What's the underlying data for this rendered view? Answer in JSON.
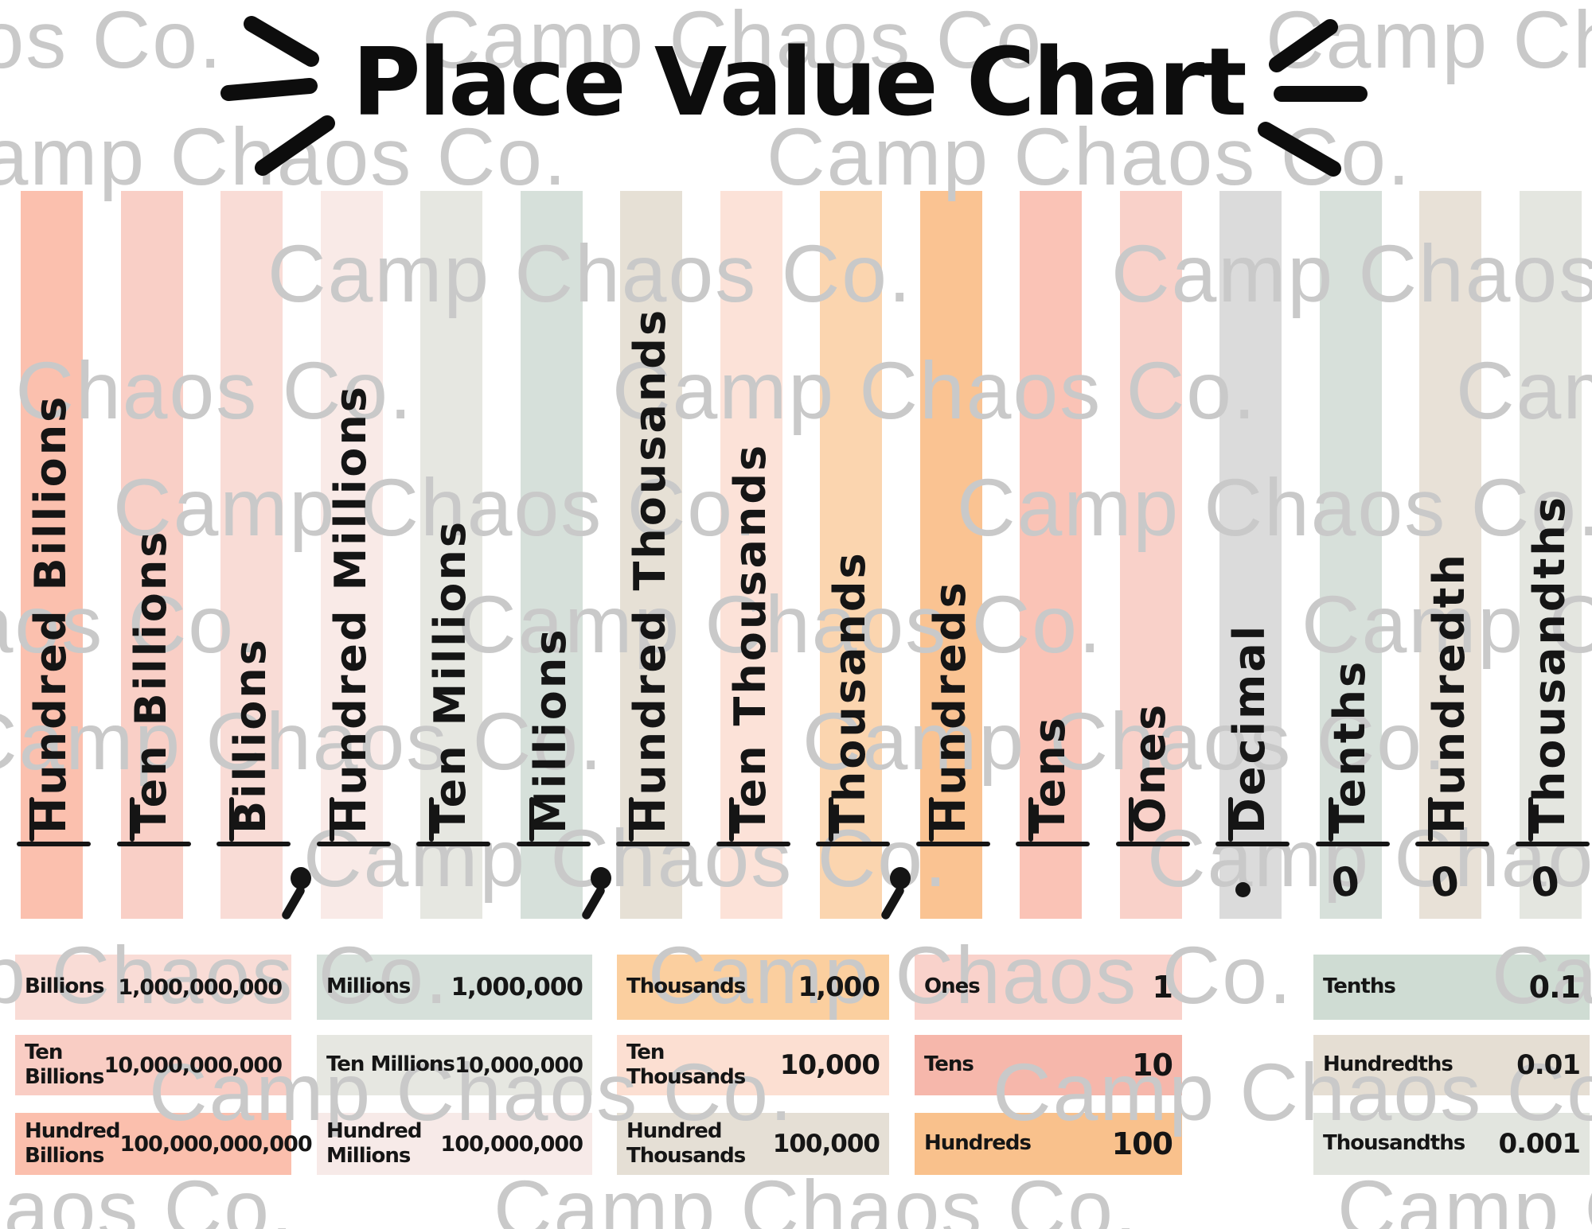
{
  "title": "Place Value Chart",
  "watermark": {
    "text": "Camp Chaos Co."
  },
  "ink_color": "#151515",
  "columns": [
    {
      "label": "Hundred Billions",
      "color": "#fbc0ae",
      "below": "",
      "comma_after": false
    },
    {
      "label": "Ten Billions",
      "color": "#f9cfc6",
      "below": "",
      "comma_after": false
    },
    {
      "label": "Billions",
      "color": "#f9dcd6",
      "below": "",
      "comma_after": true
    },
    {
      "label": "Hundred Millions",
      "color": "#f9eae7",
      "below": "",
      "comma_after": false
    },
    {
      "label": "Ten Millions",
      "color": "#e6e7e1",
      "below": "",
      "comma_after": false
    },
    {
      "label": "Millions",
      "color": "#d6e0da",
      "below": "",
      "comma_after": true
    },
    {
      "label": "Hundred Thousands",
      "color": "#e6e0d5",
      "below": "",
      "comma_after": false
    },
    {
      "label": "Ten Thousands",
      "color": "#fce2d8",
      "below": "",
      "comma_after": false
    },
    {
      "label": "Thousands",
      "color": "#fbd5af",
      "below": "",
      "comma_after": true
    },
    {
      "label": "Hundreds",
      "color": "#fac392",
      "below": "",
      "comma_after": false
    },
    {
      "label": "Tens",
      "color": "#fac3b6",
      "below": "",
      "comma_after": false
    },
    {
      "label": "Ones",
      "color": "#f9d1c9",
      "below": "",
      "comma_after": false
    },
    {
      "label": "Decimal",
      "color": "#dbdbdb",
      "below": ".",
      "comma_after": false
    },
    {
      "label": "Tenths",
      "color": "#d7e0da",
      "below": "0",
      "comma_after": false
    },
    {
      "label": "Hundredth",
      "color": "#e8e1d7",
      "below": "0",
      "comma_after": false
    },
    {
      "label": "Thousandths",
      "color": "#e4e6e0",
      "below": "0",
      "comma_after": false
    }
  ],
  "reference_tables": [
    {
      "rows": [
        {
          "label": "Billions",
          "value": "1,000,000,000",
          "color": "#f9dcd6"
        },
        {
          "label": "Ten\nBillions",
          "value": "10,000,000,000",
          "color": "#f9cdc4"
        },
        {
          "label": "Hundred\nBillions",
          "value": "100,000,000,000",
          "color": "#fbbfad"
        }
      ]
    },
    {
      "rows": [
        {
          "label": "Millions",
          "value": "1,000,000",
          "color": "#d6e0da"
        },
        {
          "label": "Ten Millions",
          "value": "10,000,000",
          "color": "#e6e7e1"
        },
        {
          "label": "Hundred\nMillions",
          "value": "100,000,000",
          "color": "#f7eae8"
        }
      ]
    },
    {
      "rows": [
        {
          "label": "Thousands",
          "value": "1,000",
          "color": "#fbcf9f"
        },
        {
          "label": "Ten Thousands",
          "value": "10,000",
          "color": "#fcdfd2"
        },
        {
          "label": "Hundred\nThousands",
          "value": "100,000",
          "color": "#e5dfd5"
        }
      ]
    },
    {
      "rows": [
        {
          "label": "Ones",
          "value": "1",
          "color": "#f9d2cb"
        },
        {
          "label": "Tens",
          "value": "10",
          "color": "#f6b7ab"
        },
        {
          "label": "Hundreds",
          "value": "100",
          "color": "#f9c18c"
        }
      ]
    },
    {
      "rows": [
        {
          "label": "Tenths",
          "value": "0.1",
          "color": "#cfdcd3"
        },
        {
          "label": "Hundredths",
          "value": "0.01",
          "color": "#e5ded3"
        },
        {
          "label": "Thousandths",
          "value": "0.001",
          "color": "#e2e5df"
        }
      ]
    }
  ]
}
